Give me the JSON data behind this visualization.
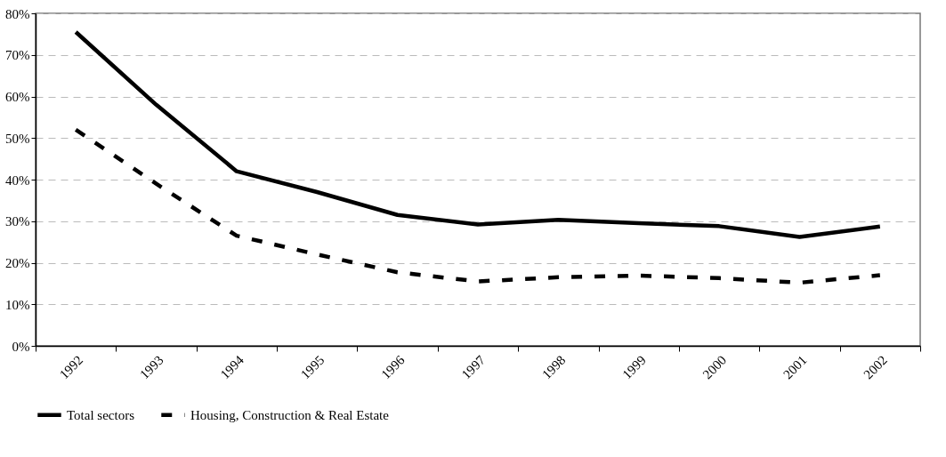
{
  "chart_data": {
    "type": "line",
    "categories": [
      "1992",
      "1993",
      "1994",
      "1995",
      "1996",
      "1997",
      "1998",
      "1999",
      "2000",
      "2001",
      "2002"
    ],
    "series": [
      {
        "name": "Total sectors",
        "color": "#000000",
        "line_style": "solid",
        "values": [
          75.5,
          58,
          42,
          37,
          31.5,
          29.2,
          30.3,
          29.5,
          28.8,
          26.2,
          28.7
        ]
      },
      {
        "name": "Housing, Construction & Real Estate",
        "color": "#000000",
        "line_style": "dashed",
        "values": [
          52,
          39,
          26.5,
          22,
          17.7,
          15.5,
          16.5,
          16.9,
          16.3,
          15.2,
          17
        ]
      }
    ],
    "ylim": [
      0,
      80
    ],
    "yticks": [
      {
        "value": 0,
        "label": "0%"
      },
      {
        "value": 10,
        "label": "10%"
      },
      {
        "value": 20,
        "label": "20%"
      },
      {
        "value": 30,
        "label": "30%"
      },
      {
        "value": 40,
        "label": "40%"
      },
      {
        "value": 50,
        "label": "50%"
      },
      {
        "value": 60,
        "label": "60%"
      },
      {
        "value": 70,
        "label": "70%"
      },
      {
        "value": 80,
        "label": "80%"
      }
    ],
    "grid": "y",
    "legend": "bottom",
    "marker": "none"
  }
}
